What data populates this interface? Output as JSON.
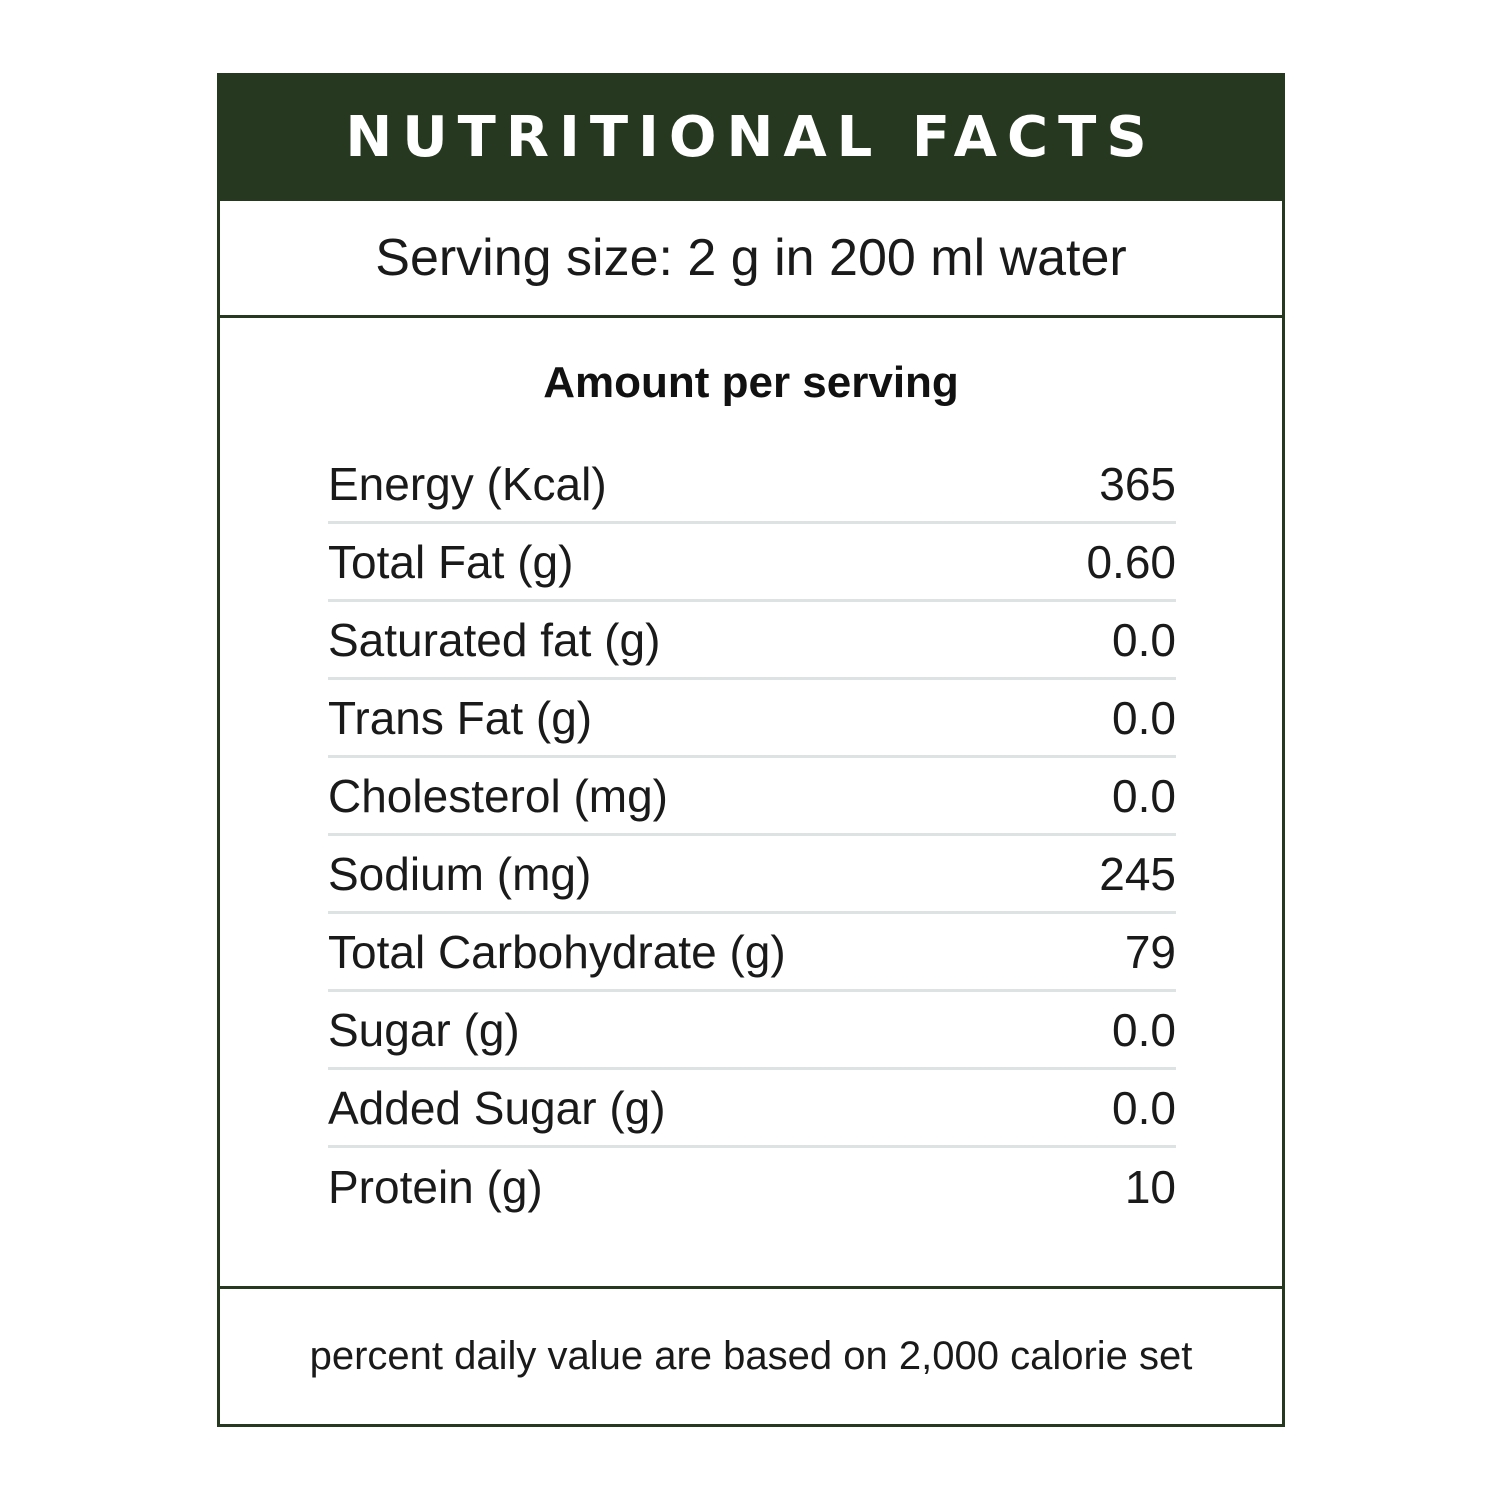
{
  "title": "NUTRITIONAL FACTS",
  "serving_size": "Serving size: 2 g in 200 ml water",
  "amount_title": "Amount per serving",
  "nutrients": [
    {
      "label": "Energy (Kcal)",
      "value": "365"
    },
    {
      "label": "Total Fat (g)",
      "value": "0.60"
    },
    {
      "label": "Saturated fat (g)",
      "value": "0.0"
    },
    {
      "label": "Trans Fat (g)",
      "value": "0.0"
    },
    {
      "label": "Cholesterol (mg)",
      "value": "0.0"
    },
    {
      "label": "Sodium (mg)",
      "value": "245"
    },
    {
      "label": "Total Carbohydrate (g)",
      "value": "79"
    },
    {
      "label": "Sugar (g)",
      "value": "0.0"
    },
    {
      "label": "Added Sugar (g)",
      "value": "0.0"
    },
    {
      "label": "Protein (g)",
      "value": "10"
    }
  ],
  "footer": "percent daily value are based on 2,000 calorie set",
  "colors": {
    "header_bg": "#26381f",
    "border": "#26381f",
    "divider": "#dde3e3"
  }
}
